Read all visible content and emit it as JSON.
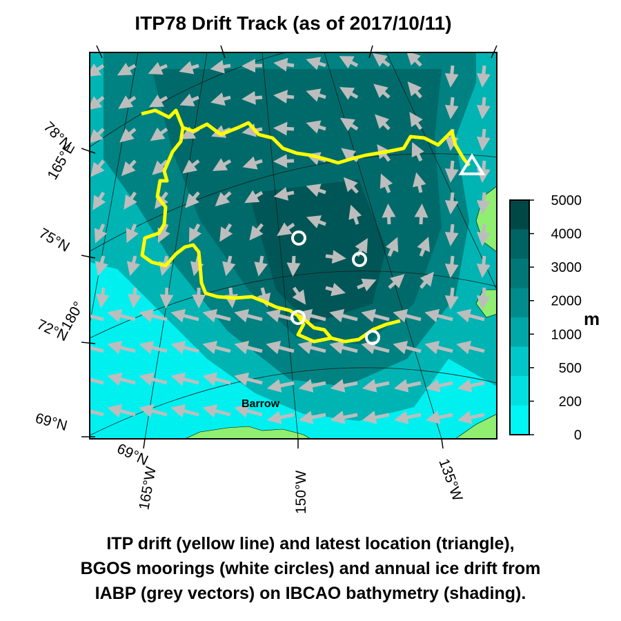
{
  "title": "ITP78 Drift Track (as of 2017/10/11)",
  "caption": [
    "ITP drift (yellow line) and latest location (triangle),",
    "BGOS moorings (white circles) and annual ice drift from",
    "IABP (grey vectors) on IBCAO bathymetry (shading)."
  ],
  "map": {
    "place_labels": [
      "Barrow"
    ],
    "latitude_labels": [
      "78°N",
      "75°N",
      "72°N",
      "69°N",
      "69°N"
    ],
    "longitude_labels": [
      "165°E",
      "180°",
      "165°W",
      "150°W",
      "135°W"
    ],
    "track_color": "#ffff00",
    "mooring_color": "#ffffff",
    "vector_color": "#bdbdbd",
    "land_color": "#90ee70"
  },
  "colorbar": {
    "unit": "m",
    "levels": [
      "5000",
      "4000",
      "3000",
      "2000",
      "1000",
      "500",
      "200",
      "0"
    ],
    "colors": [
      "#004848",
      "#006464",
      "#007878",
      "#008c8c",
      "#00a8a8",
      "#00c8c8",
      "#00e0e0",
      "#00f5f5"
    ]
  }
}
